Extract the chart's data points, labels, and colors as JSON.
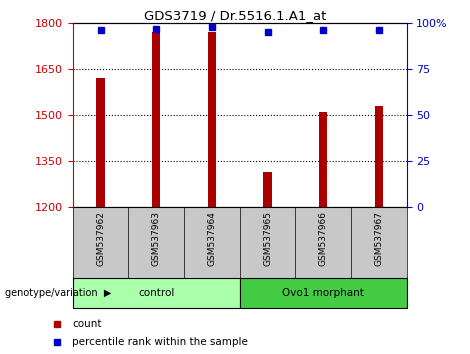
{
  "title": "GDS3719 / Dr.5516.1.A1_at",
  "samples": [
    "GSM537962",
    "GSM537963",
    "GSM537964",
    "GSM537965",
    "GSM537966",
    "GSM537967"
  ],
  "counts": [
    1620,
    1770,
    1770,
    1315,
    1510,
    1530
  ],
  "percentiles": [
    96,
    97,
    98,
    95,
    96,
    96
  ],
  "ylim_left": [
    1200,
    1800
  ],
  "ylim_right": [
    0,
    100
  ],
  "yticks_left": [
    1200,
    1350,
    1500,
    1650,
    1800
  ],
  "yticks_right": [
    0,
    25,
    50,
    75,
    100
  ],
  "bar_color": "#AA0000",
  "dot_color": "#0000CC",
  "groups": [
    {
      "label": "control",
      "indices": [
        0,
        1,
        2
      ],
      "color": "#AAFFAA"
    },
    {
      "label": "Ovo1 morphant",
      "indices": [
        3,
        4,
        5
      ],
      "color": "#44CC44"
    }
  ],
  "group_label_prefix": "genotype/variation",
  "legend_count_label": "count",
  "legend_pct_label": "percentile rank within the sample",
  "tick_color_left": "#CC0000",
  "tick_color_right": "#0000CC",
  "grid_style": "dotted",
  "grid_color": "#000000",
  "xlabel_bg_color": "#C8C8C8",
  "bar_width": 0.15
}
